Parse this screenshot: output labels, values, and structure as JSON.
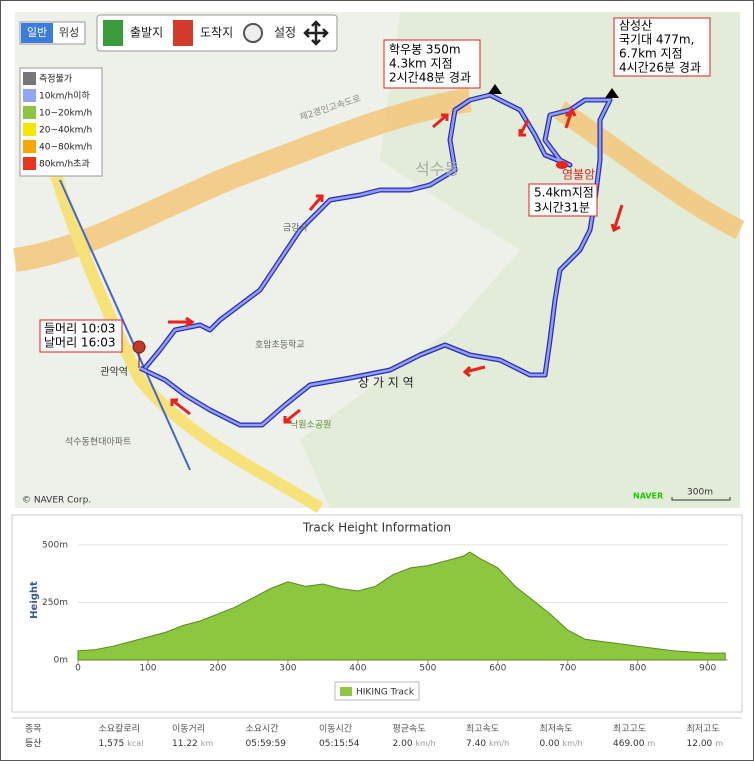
{
  "toolbar": {
    "map_types": [
      "일반",
      "위성"
    ],
    "buttons": [
      "출발지",
      "도착지",
      "설정"
    ]
  },
  "speed_legend": [
    {
      "label": "측정불가",
      "color": "#777777"
    },
    {
      "label": "10km/h이하",
      "color": "#8fa8f0"
    },
    {
      "label": "10~20km/h",
      "color": "#8cc63f"
    },
    {
      "label": "20~40km/h",
      "color": "#f5e800"
    },
    {
      "label": "40~80km/h",
      "color": "#f7a800"
    },
    {
      "label": "80km/h초과",
      "color": "#e8351e"
    }
  ],
  "map": {
    "annotations": [
      {
        "lines": [
          "학우봉 350m",
          "4.3km 지점",
          "2시간48분 경과"
        ]
      },
      {
        "lines": [
          "삼성산",
          "국기대 477m,",
          "6.7km 지점",
          "4시간26분 경과"
        ]
      },
      {
        "lines": [
          "5.4km지점",
          "3시간31분"
        ]
      },
      {
        "lines": [
          "들머리 10:03",
          "날머리 16:03"
        ]
      }
    ],
    "labels": [
      "염불암",
      "상 가 지 역",
      "관악역",
      "석수동",
      "호암초등학교",
      "낙원소공원",
      "석수동현대아파트",
      "금강사",
      "제2경인고속도로"
    ],
    "copyright": "© NAVER Corp.",
    "logo": "NAVER",
    "scale": "300m"
  },
  "chart_data": {
    "type": "area",
    "title": "Track Height Information",
    "y_label": "Height",
    "x": [
      0,
      25,
      50,
      75,
      100,
      125,
      150,
      175,
      200,
      225,
      250,
      275,
      300,
      325,
      350,
      375,
      400,
      425,
      450,
      475,
      500,
      525,
      550,
      560,
      575,
      600,
      625,
      650,
      675,
      700,
      725,
      750,
      775,
      800,
      825,
      850,
      875,
      900,
      925
    ],
    "series": [
      {
        "name": "HIKING Track",
        "color": "#8dc63f",
        "values": [
          40,
          45,
          60,
          80,
          100,
          120,
          150,
          170,
          200,
          230,
          270,
          310,
          340,
          320,
          330,
          310,
          300,
          320,
          370,
          400,
          410,
          430,
          450,
          469,
          440,
          400,
          320,
          260,
          200,
          130,
          90,
          80,
          70,
          60,
          50,
          40,
          35,
          30,
          30
        ]
      }
    ],
    "xlim": [
      0,
      929
    ],
    "ylim": [
      0,
      530
    ],
    "xticks": [
      0,
      100,
      200,
      300,
      400,
      500,
      600,
      700,
      800,
      900
    ],
    "yticks": [
      {
        "value": 0,
        "label": "0m"
      },
      {
        "value": 250,
        "label": "250m"
      },
      {
        "value": 500,
        "label": "500m"
      }
    ],
    "grid": true
  },
  "stats": [
    {
      "label": "종목",
      "value": "등산"
    },
    {
      "label": "소요칼로리",
      "value": "1,575",
      "unit": "kcal"
    },
    {
      "label": "이동거리",
      "value": "11.22",
      "unit": "km"
    },
    {
      "label": "소요시간",
      "value": "05:59:59"
    },
    {
      "label": "이동시간",
      "value": "05:15:54"
    },
    {
      "label": "평균속도",
      "value": "2.00",
      "unit": "km/h"
    },
    {
      "label": "최고속도",
      "value": "7.40",
      "unit": "km/h"
    },
    {
      "label": "최저속도",
      "value": "0.00",
      "unit": "km/h"
    },
    {
      "label": "최고고도",
      "value": "469.00",
      "unit": "m"
    },
    {
      "label": "최저고도",
      "value": "12.00",
      "unit": "m"
    }
  ]
}
